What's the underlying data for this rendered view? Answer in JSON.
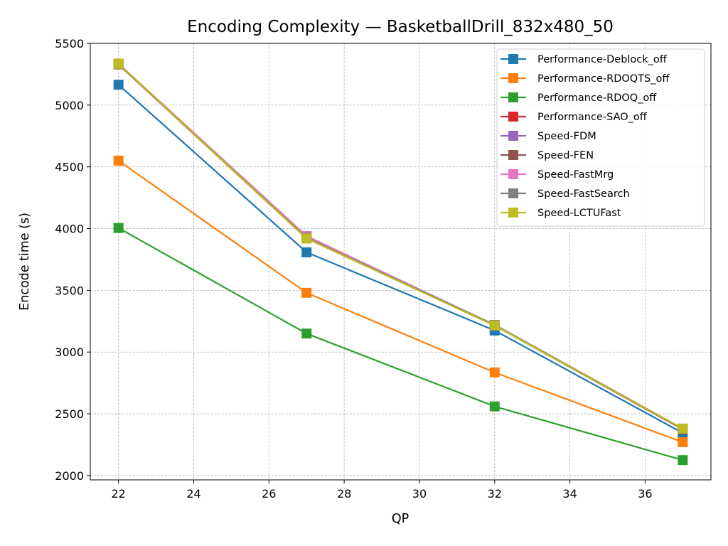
{
  "chart_data": {
    "type": "line",
    "title": "Encoding Complexity — BasketballDrill_832x480_50",
    "xlabel": "QP",
    "ylabel": "Encode time (s)",
    "x": [
      22,
      27,
      32,
      37
    ],
    "xlim": [
      21.25,
      37.75
    ],
    "ylim": [
      1965,
      5500
    ],
    "xticks": [
      22,
      24,
      26,
      28,
      30,
      32,
      34,
      36
    ],
    "yticks": [
      2000,
      2500,
      3000,
      3500,
      4000,
      4500,
      5000,
      5500
    ],
    "grid": true,
    "legend_position": "top-right",
    "marker": "square",
    "series": [
      {
        "name": "Performance-Deblock_off",
        "color": "#1f77b4",
        "values": [
          5165,
          3808,
          3175,
          2345
        ]
      },
      {
        "name": "Performance-RDOQTS_off",
        "color": "#ff7f0e",
        "values": [
          4550,
          3480,
          2835,
          2270
        ]
      },
      {
        "name": "Performance-RDOQ_off",
        "color": "#2ca02c",
        "values": [
          4005,
          3150,
          2560,
          2125
        ]
      },
      {
        "name": "Performance-SAO_off",
        "color": "#d62728",
        "values": [
          5330,
          3920,
          3215,
          2375
        ]
      },
      {
        "name": "Speed-FDM",
        "color": "#9467bd",
        "values": [
          5335,
          3935,
          3220,
          2380
        ]
      },
      {
        "name": "Speed-FEN",
        "color": "#8c564b",
        "values": [
          5330,
          3925,
          3215,
          2375
        ]
      },
      {
        "name": "Speed-FastMrg",
        "color": "#e377c2",
        "values": [
          5335,
          3940,
          3220,
          2380
        ]
      },
      {
        "name": "Speed-FastSearch",
        "color": "#7f7f7f",
        "values": [
          5335,
          3925,
          3220,
          2380
        ]
      },
      {
        "name": "Speed-LCTUFast",
        "color": "#bcbd22",
        "values": [
          5335,
          3920,
          3215,
          2380
        ]
      }
    ]
  }
}
